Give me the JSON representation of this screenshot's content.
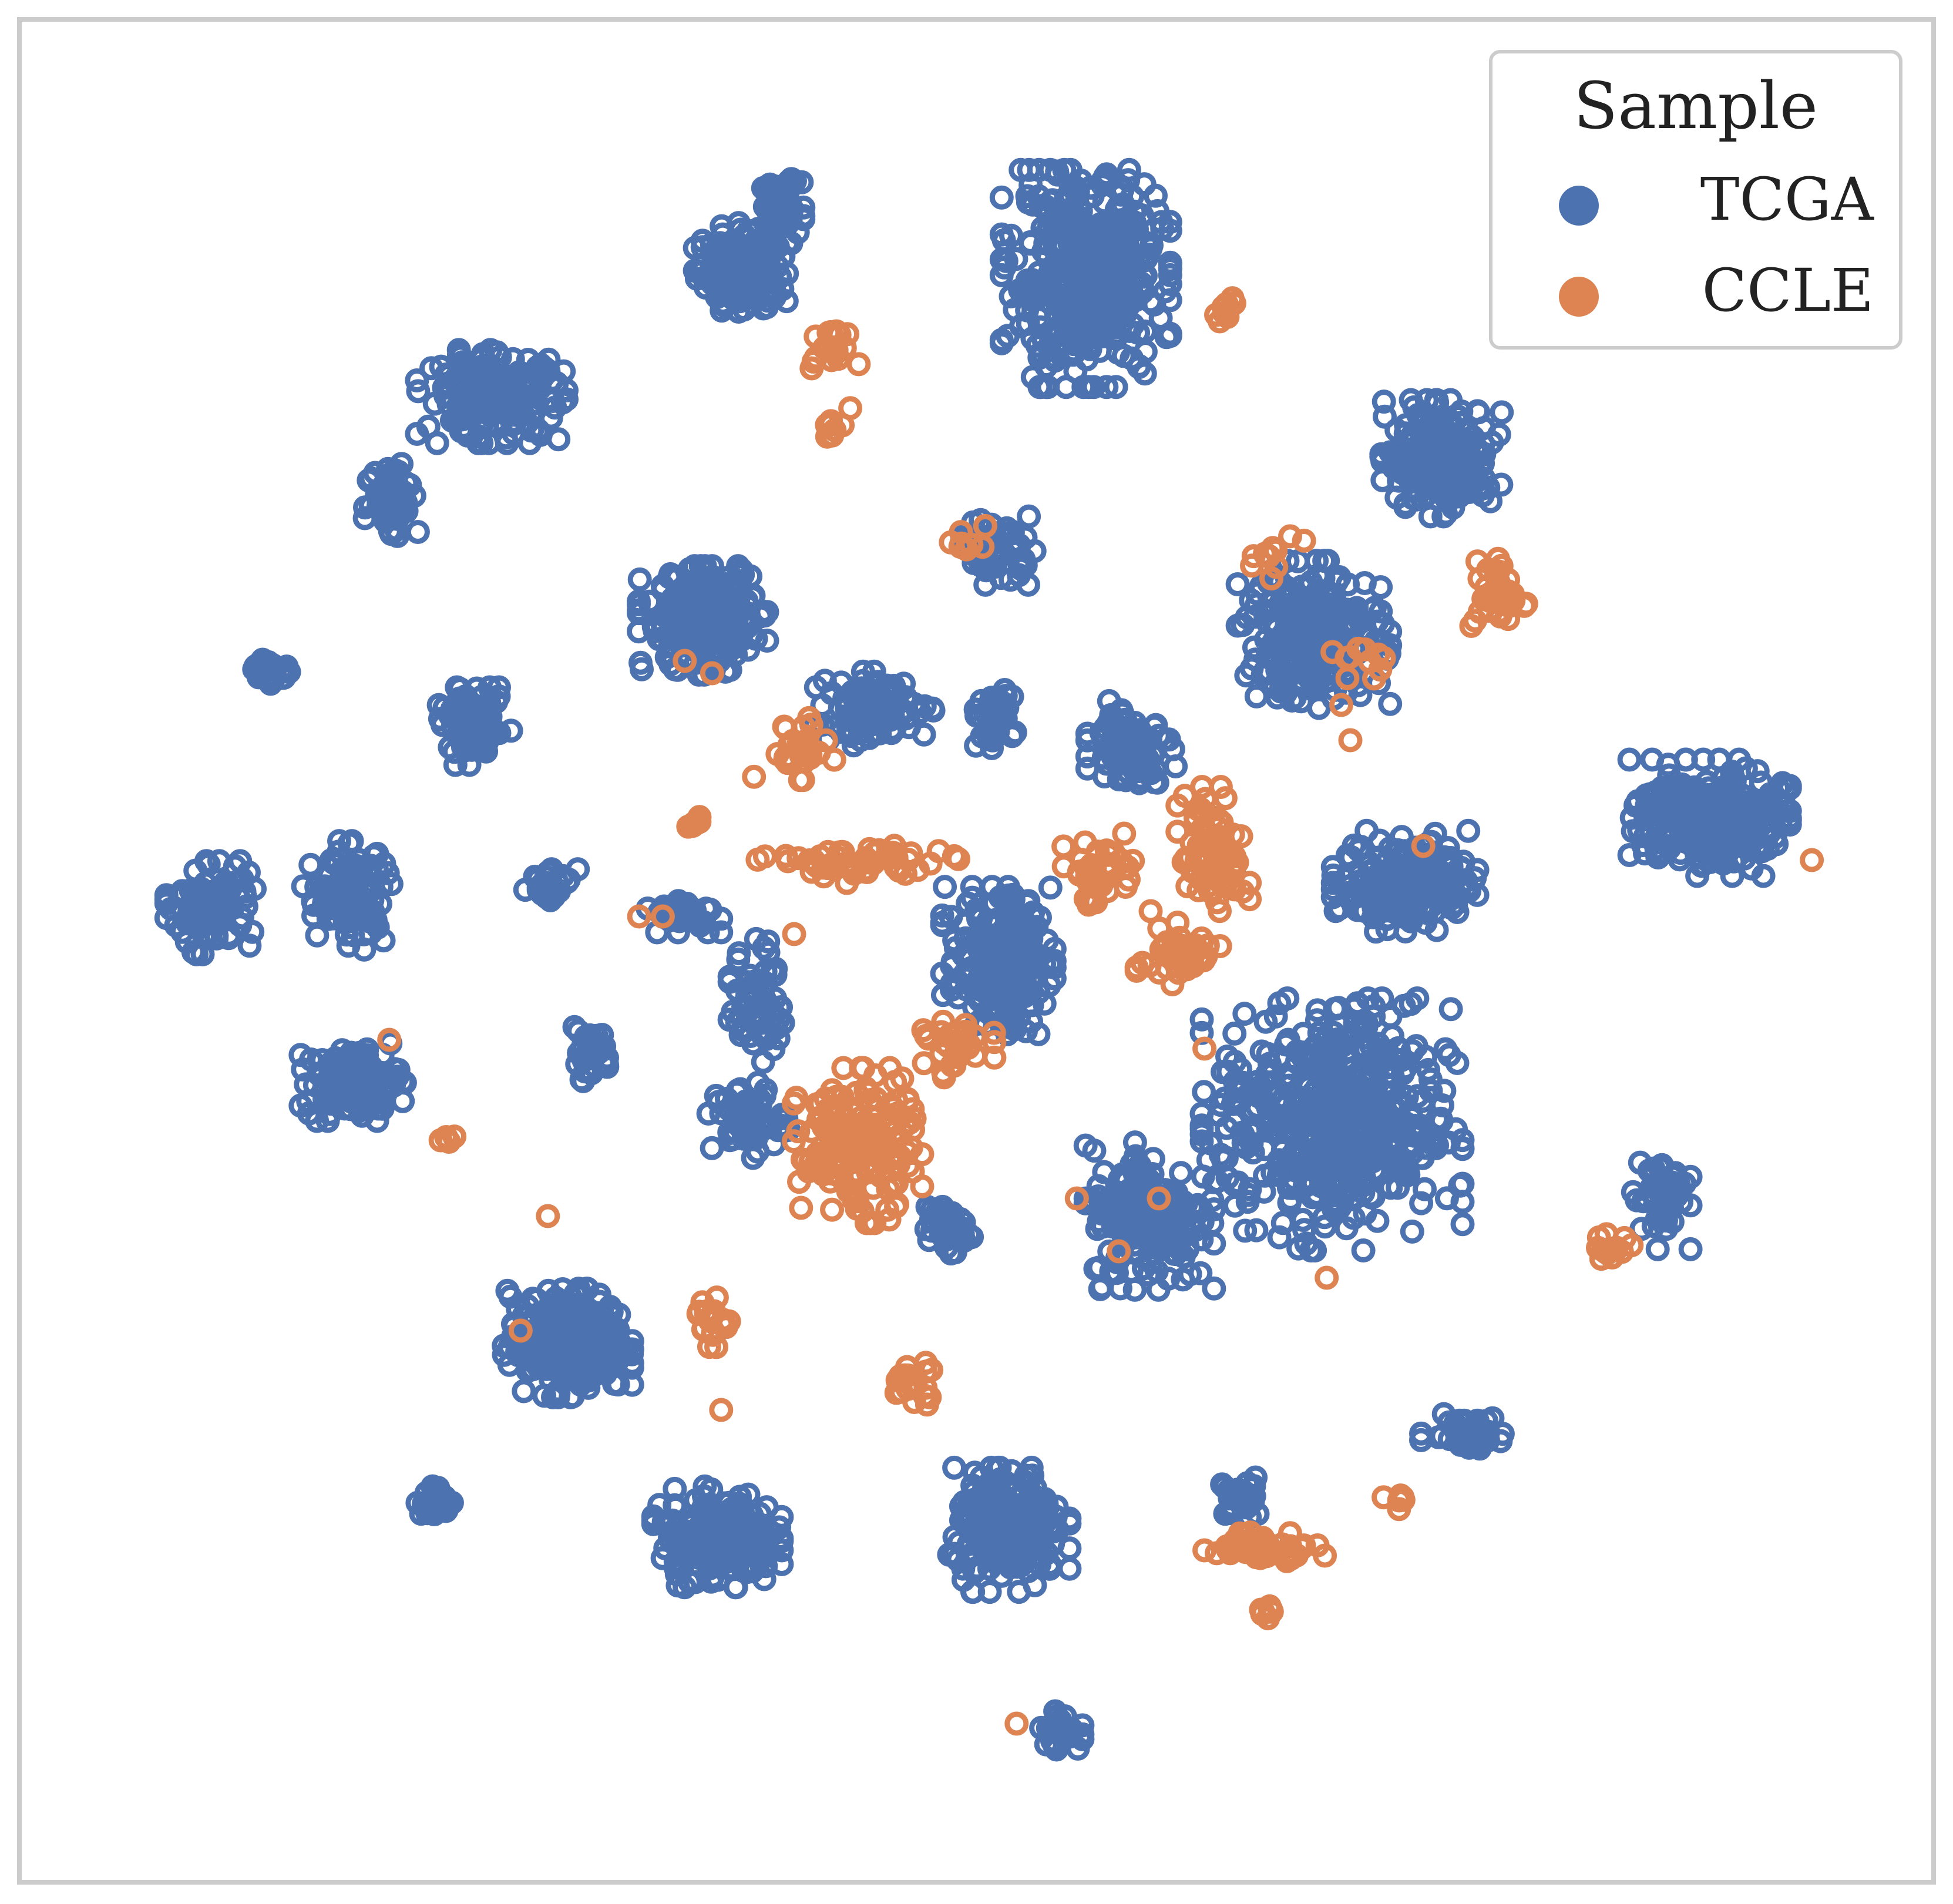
{
  "chart_data": {
    "type": "scatter",
    "title": "",
    "xlabel": "",
    "ylabel": "",
    "xlim": [
      0,
      100
    ],
    "ylim": [
      0,
      100
    ],
    "grid": false,
    "axes_ticks": false,
    "legend": {
      "title": "Sample",
      "placement": "top-right",
      "entries": [
        "TCGA",
        "CCLE"
      ]
    },
    "colors": {
      "TCGA": "#4c72b0",
      "CCLE": "#dd8452"
    },
    "series": [
      {
        "name": "TCGA",
        "clusters": [
          {
            "cx": 39.3,
            "cy": 92.3,
            "sx": 1.1,
            "sy": 1.4,
            "n": 70
          },
          {
            "cx": 37.2,
            "cy": 88.8,
            "sx": 2.4,
            "sy": 2.4,
            "n": 160
          },
          {
            "cx": 56.0,
            "cy": 88.2,
            "sx": 4.2,
            "sy": 5.6,
            "n": 420
          },
          {
            "cx": 23.5,
            "cy": 81.5,
            "sx": 3.8,
            "sy": 2.4,
            "n": 180
          },
          {
            "cx": 18.0,
            "cy": 75.8,
            "sx": 1.4,
            "sy": 2.2,
            "n": 60
          },
          {
            "cx": 75.5,
            "cy": 78.0,
            "sx": 3.0,
            "sy": 3.0,
            "n": 200
          },
          {
            "cx": 51.2,
            "cy": 72.8,
            "sx": 1.8,
            "sy": 1.8,
            "n": 60
          },
          {
            "cx": 35.0,
            "cy": 68.8,
            "sx": 3.2,
            "sy": 2.8,
            "n": 230
          },
          {
            "cx": 68.5,
            "cy": 68.0,
            "sx": 3.8,
            "sy": 3.8,
            "n": 240
          },
          {
            "cx": 11.2,
            "cy": 66.0,
            "sx": 1.2,
            "sy": 0.8,
            "n": 30
          },
          {
            "cx": 22.5,
            "cy": 62.8,
            "sx": 1.8,
            "sy": 2.0,
            "n": 70
          },
          {
            "cx": 44.5,
            "cy": 63.8,
            "sx": 3.0,
            "sy": 1.9,
            "n": 100
          },
          {
            "cx": 50.8,
            "cy": 63.2,
            "sx": 1.2,
            "sy": 1.5,
            "n": 40
          },
          {
            "cx": 58.5,
            "cy": 61.8,
            "sx": 2.2,
            "sy": 2.2,
            "n": 80
          },
          {
            "cx": 90.2,
            "cy": 57.6,
            "sx": 4.0,
            "sy": 3.0,
            "n": 260
          },
          {
            "cx": 8.0,
            "cy": 52.5,
            "sx": 2.2,
            "sy": 2.4,
            "n": 100
          },
          {
            "cx": 15.5,
            "cy": 53.2,
            "sx": 2.2,
            "sy": 2.8,
            "n": 110
          },
          {
            "cx": 26.8,
            "cy": 53.8,
            "sx": 1.4,
            "sy": 0.8,
            "n": 30
          },
          {
            "cx": 33.8,
            "cy": 52.2,
            "sx": 2.0,
            "sy": 1.0,
            "n": 40
          },
          {
            "cx": 51.2,
            "cy": 49.5,
            "sx": 2.8,
            "sy": 3.8,
            "n": 220
          },
          {
            "cx": 73.5,
            "cy": 54.0,
            "sx": 3.6,
            "sy": 2.6,
            "n": 180
          },
          {
            "cx": 38.0,
            "cy": 47.2,
            "sx": 1.4,
            "sy": 3.2,
            "n": 60
          },
          {
            "cx": 69.5,
            "cy": 40.2,
            "sx": 6.5,
            "sy": 6.5,
            "n": 480
          },
          {
            "cx": 59.5,
            "cy": 35.0,
            "sx": 3.2,
            "sy": 3.8,
            "n": 200
          },
          {
            "cx": 28.8,
            "cy": 44.2,
            "sx": 1.2,
            "sy": 1.4,
            "n": 30
          },
          {
            "cx": 15.8,
            "cy": 42.6,
            "sx": 2.6,
            "sy": 2.0,
            "n": 130
          },
          {
            "cx": 37.5,
            "cy": 40.5,
            "sx": 2.0,
            "sy": 2.0,
            "n": 60
          },
          {
            "cx": 48.5,
            "cy": 34.2,
            "sx": 1.2,
            "sy": 1.2,
            "n": 40
          },
          {
            "cx": 87.5,
            "cy": 36.2,
            "sx": 1.5,
            "sy": 2.8,
            "n": 50
          },
          {
            "cx": 27.6,
            "cy": 27.8,
            "sx": 3.2,
            "sy": 2.8,
            "n": 280
          },
          {
            "cx": 20.5,
            "cy": 18.8,
            "sx": 1.2,
            "sy": 0.8,
            "n": 30
          },
          {
            "cx": 35.8,
            "cy": 16.8,
            "sx": 3.2,
            "sy": 2.6,
            "n": 200
          },
          {
            "cx": 51.8,
            "cy": 17.2,
            "sx": 3.0,
            "sy": 3.2,
            "n": 230
          },
          {
            "cx": 64.5,
            "cy": 19.0,
            "sx": 1.2,
            "sy": 1.2,
            "n": 30
          },
          {
            "cx": 76.8,
            "cy": 22.8,
            "sx": 2.2,
            "sy": 0.9,
            "n": 50
          },
          {
            "cx": 54.6,
            "cy": 5.8,
            "sx": 1.1,
            "sy": 1.0,
            "n": 30
          }
        ]
      },
      {
        "name": "CCLE",
        "clusters": [
          {
            "cx": 42.0,
            "cy": 84.2,
            "sx": 1.4,
            "sy": 1.0,
            "n": 18
          },
          {
            "cx": 42.2,
            "cy": 80.0,
            "sx": 0.8,
            "sy": 0.8,
            "n": 8
          },
          {
            "cx": 63.8,
            "cy": 86.2,
            "sx": 0.6,
            "sy": 0.8,
            "n": 8
          },
          {
            "cx": 49.5,
            "cy": 73.2,
            "sx": 1.0,
            "sy": 1.0,
            "n": 8
          },
          {
            "cx": 78.6,
            "cy": 70.2,
            "sx": 1.4,
            "sy": 2.0,
            "n": 35
          },
          {
            "cx": 66.2,
            "cy": 72.5,
            "sx": 1.6,
            "sy": 1.2,
            "n": 10
          },
          {
            "cx": 71.5,
            "cy": 66.5,
            "sx": 1.8,
            "sy": 1.4,
            "n": 10
          },
          {
            "cx": 40.0,
            "cy": 61.5,
            "sx": 2.0,
            "sy": 1.6,
            "n": 30
          },
          {
            "cx": 43.5,
            "cy": 55.0,
            "sx": 5.0,
            "sy": 1.0,
            "n": 55
          },
          {
            "cx": 56.8,
            "cy": 54.5,
            "sx": 2.5,
            "sy": 2.0,
            "n": 40
          },
          {
            "cx": 63.0,
            "cy": 55.5,
            "sx": 1.8,
            "sy": 3.5,
            "n": 70
          },
          {
            "cx": 61.2,
            "cy": 49.8,
            "sx": 2.2,
            "sy": 1.5,
            "n": 50
          },
          {
            "cx": 43.5,
            "cy": 39.0,
            "sx": 3.2,
            "sy": 4.0,
            "n": 170
          },
          {
            "cx": 49.0,
            "cy": 44.5,
            "sx": 1.8,
            "sy": 1.5,
            "n": 30
          },
          {
            "cx": 34.6,
            "cy": 57.2,
            "sx": 0.6,
            "sy": 0.4,
            "n": 8
          },
          {
            "cx": 35.5,
            "cy": 29.0,
            "sx": 0.9,
            "sy": 1.3,
            "n": 20
          },
          {
            "cx": 46.5,
            "cy": 25.5,
            "sx": 1.4,
            "sy": 1.2,
            "n": 20
          },
          {
            "cx": 65.8,
            "cy": 16.3,
            "sx": 3.0,
            "sy": 0.8,
            "n": 50
          },
          {
            "cx": 66.0,
            "cy": 12.5,
            "sx": 0.5,
            "sy": 0.6,
            "n": 8
          },
          {
            "cx": 84.6,
            "cy": 33.2,
            "sx": 1.2,
            "sy": 0.8,
            "n": 14
          },
          {
            "cx": 73.2,
            "cy": 18.8,
            "sx": 0.8,
            "sy": 0.4,
            "n": 6
          },
          {
            "cx": 21.2,
            "cy": 39.3,
            "sx": 0.9,
            "sy": 0.3,
            "n": 5
          }
        ],
        "points": [
          [
            35.5,
            65.8
          ],
          [
            34.0,
            66.5
          ],
          [
            17.8,
            45.0
          ],
          [
            25.0,
            28.5
          ],
          [
            26.5,
            35.0
          ],
          [
            52.2,
            6.2
          ],
          [
            95.8,
            55.2
          ],
          [
            74.5,
            56.0
          ],
          [
            71.8,
            65.5
          ],
          [
            70.0,
            64.0
          ],
          [
            62.5,
            44.5
          ],
          [
            60.0,
            36.0
          ],
          [
            55.5,
            36.0
          ],
          [
            57.8,
            33.0
          ],
          [
            40.0,
            51.0
          ],
          [
            31.5,
            52.0
          ],
          [
            32.8,
            52.0
          ],
          [
            36.0,
            24.0
          ],
          [
            69.2,
            31.5
          ],
          [
            70.5,
            62.0
          ]
        ]
      }
    ]
  }
}
